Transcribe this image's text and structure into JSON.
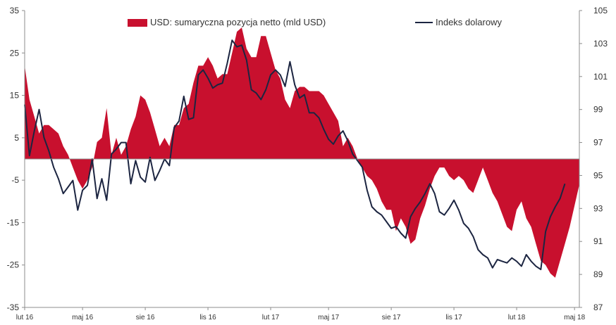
{
  "chart_data": {
    "type": "area",
    "legend_position": "top",
    "grid": false,
    "y_left": {
      "min": -35,
      "max": 35,
      "ticks": [
        35,
        25,
        15,
        5,
        -5,
        -15,
        -25,
        -35
      ]
    },
    "y_right": {
      "min": 87,
      "max": 105,
      "ticks": [
        105,
        103,
        101,
        99,
        97,
        95,
        93,
        91,
        89,
        87
      ]
    },
    "x_ticks": [
      {
        "label": "lut 16",
        "index": 0
      },
      {
        "label": "maj 16",
        "index": 12
      },
      {
        "label": "sie 16",
        "index": 25
      },
      {
        "label": "lis 16",
        "index": 38
      },
      {
        "label": "lut 17",
        "index": 51
      },
      {
        "label": "maj 17",
        "index": 63
      },
      {
        "label": "sie 17",
        "index": 76
      },
      {
        "label": "lis 17",
        "index": 89
      },
      {
        "label": "lut 18",
        "index": 102
      },
      {
        "label": "maj 18",
        "index": 114
      }
    ],
    "series": [
      {
        "name": "USD: sumaryczna pozycja netto (mld USD)",
        "kind": "area",
        "axis": "left",
        "color": "#c8102e",
        "values": [
          22,
          14,
          10,
          6,
          8,
          8,
          7,
          6,
          3,
          1,
          -2,
          -5,
          -7,
          -5,
          -2,
          4,
          5,
          12,
          1,
          5,
          1,
          3,
          7,
          10,
          15,
          14,
          11,
          7,
          3,
          5,
          3,
          8,
          8,
          12,
          13,
          18,
          22,
          22,
          24,
          22,
          19,
          20,
          20,
          25,
          30,
          31,
          26,
          24,
          24,
          29,
          29,
          25,
          21,
          19,
          14,
          12,
          16,
          17,
          17,
          16,
          16,
          16,
          15,
          13,
          11,
          9,
          3,
          5,
          3,
          0,
          -2,
          -4,
          -5,
          -7,
          -10,
          -12,
          -12,
          -17,
          -14,
          -16,
          -20,
          -19,
          -14,
          -11,
          -7,
          -4,
          -2,
          -2,
          -4,
          -5,
          -4,
          -5,
          -7,
          -8,
          -5,
          -2,
          -5,
          -8,
          -10,
          -13,
          -16,
          -17,
          -12,
          -10,
          -14,
          -16,
          -20,
          -24,
          -25,
          -27,
          -28,
          -24,
          -20,
          -16,
          -11,
          -6
        ]
      },
      {
        "name": "Indeks dolarowy",
        "kind": "line",
        "axis": "right",
        "color": "#1c2541",
        "values": [
          99.3,
          96.2,
          97.7,
          99,
          97.3,
          96.5,
          95.5,
          94.8,
          93.9,
          94.3,
          94.7,
          92.9,
          94.1,
          94.4,
          96,
          93.6,
          94.8,
          93.5,
          96.3,
          96.6,
          97,
          97,
          94.5,
          95.9,
          94.9,
          94.6,
          96.1,
          94.7,
          95.3,
          96,
          95.6,
          97.9,
          98.3,
          99.8,
          98.4,
          98.5,
          101.1,
          101.4,
          100.9,
          100.3,
          100.5,
          100.6,
          101.8,
          103.2,
          102.8,
          102.9,
          102,
          100.2,
          100,
          99.6,
          100.2,
          101.1,
          101.4,
          101.1,
          100.4,
          101.9,
          100.5,
          99.7,
          99.9,
          98.8,
          98.8,
          98.5,
          97.8,
          97.2,
          96.9,
          97.4,
          97.7,
          97.1,
          96.3,
          95.9,
          95.5,
          94.1,
          93.1,
          92.8,
          92.6,
          92.2,
          91.8,
          91.9,
          91.5,
          91.2,
          92.5,
          93,
          93.4,
          93.9,
          94.5,
          93.9,
          92.8,
          92.6,
          93,
          93.5,
          92.9,
          92.1,
          91.8,
          91.3,
          90.5,
          90.2,
          90,
          89.4,
          89.9,
          89.8,
          89.7,
          90,
          89.8,
          89.5,
          90.2,
          89.8,
          89.5,
          89.3,
          91.6,
          92.5,
          93.1,
          93.6,
          94.5
        ]
      }
    ]
  }
}
